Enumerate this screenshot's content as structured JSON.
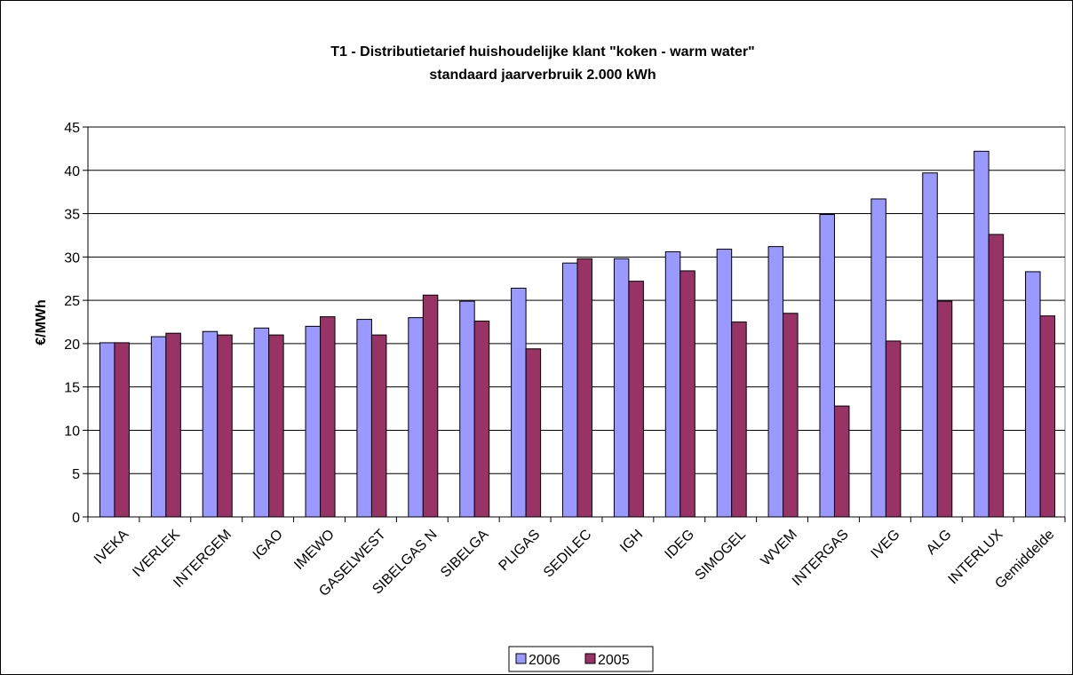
{
  "chart_data": {
    "type": "bar",
    "title": "T1 - Distributietarief huishoudelijke klant \"koken - warm water\"",
    "subtitle": "standaard jaarverbruik 2.000 kWh",
    "ylabel": "€/MWh",
    "xlabel": "",
    "ylim": [
      0,
      45
    ],
    "yticks": [
      0,
      5,
      10,
      15,
      20,
      25,
      30,
      35,
      40,
      45
    ],
    "grid": true,
    "legend_position": "bottom",
    "categories": [
      "IVEKA",
      "IVERLEK",
      "INTERGEM",
      "IGAO",
      "IMEWO",
      "GASELWEST",
      "SIBELGAS N",
      "SIBELGA",
      "PLIGAS",
      "SEDILEC",
      "IGH",
      "IDEG",
      "SIMOGEL",
      "WVEM",
      "INTERGAS",
      "IVEG",
      "ALG",
      "INTERLUX",
      "Gemiddelde"
    ],
    "series": [
      {
        "name": "2006",
        "color": "#9999ff",
        "values": [
          20.1,
          20.8,
          21.4,
          21.8,
          22.0,
          22.8,
          23.0,
          24.9,
          26.4,
          29.3,
          29.8,
          30.6,
          30.9,
          31.2,
          34.9,
          36.7,
          39.7,
          42.2,
          28.3
        ]
      },
      {
        "name": "2005",
        "color": "#993366",
        "values": [
          20.1,
          21.2,
          21.0,
          21.0,
          23.1,
          21.0,
          25.6,
          22.6,
          19.4,
          29.8,
          27.2,
          28.4,
          22.5,
          23.5,
          12.8,
          20.3,
          24.9,
          32.6,
          23.2
        ]
      }
    ]
  }
}
